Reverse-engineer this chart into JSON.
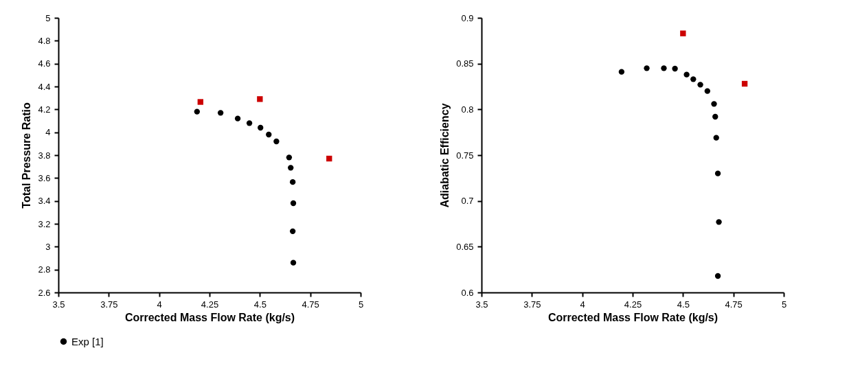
{
  "chart_data": [
    {
      "type": "scatter",
      "xlabel": "Corrected Mass Flow Rate (kg/s)",
      "ylabel": "Total Pressure Ratio",
      "xlim": [
        3.5,
        5
      ],
      "xticks": [
        3.5,
        3.75,
        4,
        4.25,
        4.5,
        4.75,
        5
      ],
      "ylim": [
        2.6,
        5
      ],
      "yticks": [
        2.6,
        2.8,
        3,
        3.2,
        3.4,
        3.6,
        3.8,
        4,
        4.2,
        4.4,
        4.6,
        4.8,
        5
      ],
      "grid": false,
      "legend": "bottom",
      "series": [
        {
          "name": "Exp [1]",
          "color": "#000000",
          "marker": "circle",
          "x": [
            4.188,
            4.305,
            4.39,
            4.448,
            4.503,
            4.544,
            4.582,
            4.645,
            4.653,
            4.663,
            4.666,
            4.663,
            4.666
          ],
          "values": [
            4.18,
            4.17,
            4.12,
            4.08,
            4.04,
            3.98,
            3.92,
            3.78,
            3.69,
            3.565,
            3.38,
            3.135,
            2.86
          ]
        },
        {
          "color": "#cc0000",
          "marker": "square",
          "x": [
            4.205,
            4.5,
            4.844
          ],
          "values": [
            4.265,
            4.29,
            3.77
          ]
        }
      ]
    },
    {
      "type": "scatter",
      "xlabel": "Corrected Mass Flow Rate (kg/s)",
      "ylabel": "Adiabatic Efficiency",
      "xlim": [
        3.5,
        5
      ],
      "xticks": [
        3.5,
        3.75,
        4,
        4.25,
        4.5,
        4.75,
        5
      ],
      "ylim": [
        0.6,
        0.9
      ],
      "yticks": [
        0.6,
        0.65,
        0.7,
        0.75,
        0.8,
        0.85,
        0.9
      ],
      "grid": false,
      "legend": "bottom",
      "series": [
        {
          "name": "Exp [1]",
          "color": "#000000",
          "marker": "circle",
          "x": [
            4.195,
            4.32,
            4.405,
            4.46,
            4.518,
            4.551,
            4.586,
            4.621,
            4.654,
            4.66,
            4.665,
            4.673,
            4.678,
            4.673
          ],
          "values": [
            0.841,
            0.845,
            0.845,
            0.8445,
            0.838,
            0.833,
            0.827,
            0.82,
            0.806,
            0.792,
            0.769,
            0.73,
            0.677,
            0.618
          ]
        },
        {
          "color": "#cc0000",
          "marker": "square",
          "x": [
            4.5,
            4.806
          ],
          "values": [
            0.883,
            0.828
          ]
        }
      ]
    }
  ]
}
